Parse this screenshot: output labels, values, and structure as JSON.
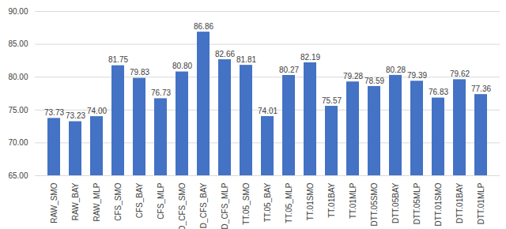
{
  "chart_data": {
    "type": "bar",
    "categories": [
      "RAW_SMO",
      "RAW_BAY",
      "RAW_MLP",
      "CFS_SMO",
      "CFS_BAY",
      "CFS_MLP",
      "D_CFS_SMO",
      "D_CFS_BAY",
      "D_CFS_MLP",
      "TT.05_SMO",
      "TT.05_BAY",
      "TT.05_MLP",
      "TT.01SMO",
      "TT.01BAY",
      "TT.01MLP",
      "DTT.05SMO",
      "DTT.05BAY",
      "DTT.05MLP",
      "DTT.01SMO",
      "DTT.01BAY",
      "DTT.01MLP"
    ],
    "values": [
      73.73,
      73.23,
      74.0,
      81.75,
      79.83,
      76.73,
      80.8,
      86.86,
      82.66,
      81.81,
      74.01,
      80.27,
      82.19,
      75.57,
      79.28,
      78.59,
      80.28,
      79.39,
      76.83,
      79.62,
      77.36
    ],
    "value_labels": [
      "73.73",
      "73.23",
      "74.00",
      "81.75",
      "79.83",
      "76.73",
      "80.80",
      "86.86",
      "82.66",
      "81.81",
      "74.01",
      "80.27",
      "82.19",
      "75.57",
      "79.28",
      "78.59",
      "80.28",
      "79.39",
      "76.83",
      "79.62",
      "77.36"
    ],
    "color": "#4472c4",
    "ylim": [
      65,
      90
    ],
    "yticks": [
      {
        "value": 65,
        "label": "65.00"
      },
      {
        "value": 70,
        "label": "70.00"
      },
      {
        "value": 75,
        "label": "75.00"
      },
      {
        "value": 80,
        "label": "80.00"
      },
      {
        "value": 85,
        "label": "85.00"
      },
      {
        "value": 90,
        "label": "90.00"
      }
    ],
    "grid": true,
    "data_labels": true
  }
}
